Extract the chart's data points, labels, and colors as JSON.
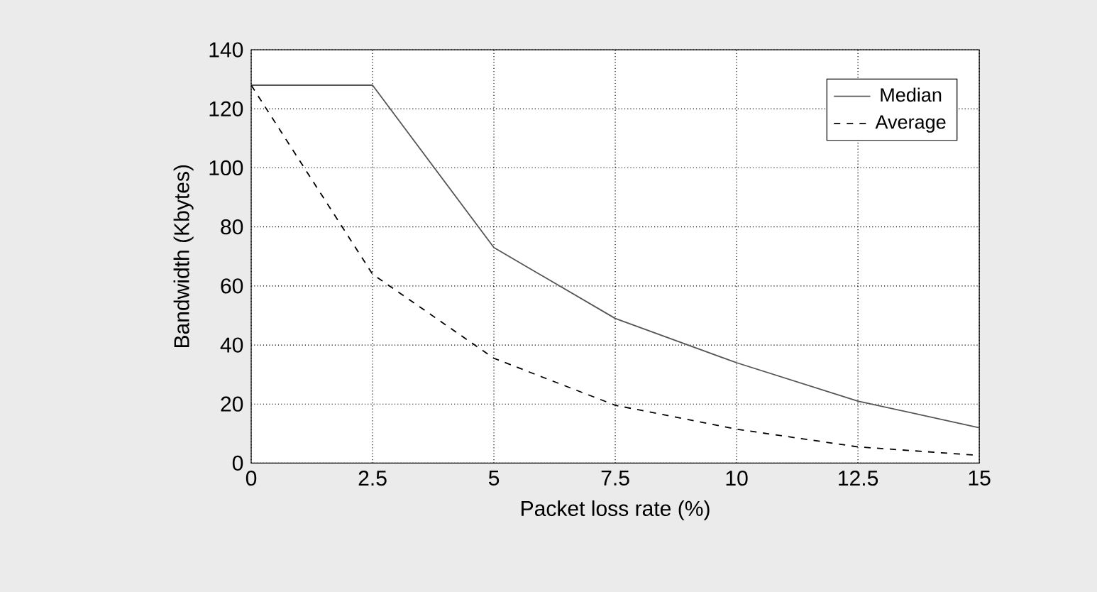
{
  "chart_data": {
    "type": "line",
    "xlabel": "Packet loss rate (%)",
    "ylabel": "Bandwidth (Kbytes)",
    "x": [
      0,
      2.5,
      5,
      7.5,
      10,
      12.5,
      15
    ],
    "series": [
      {
        "name": "Median",
        "color": "#555555",
        "line_style": "solid",
        "values": [
          128,
          128,
          73,
          49,
          34,
          21,
          12
        ]
      },
      {
        "name": "Average",
        "color": "#000000",
        "line_style": "dashed",
        "values": [
          128,
          64,
          35.5,
          19.6,
          11.5,
          5.5,
          2.6
        ]
      }
    ],
    "xlim": [
      0,
      15
    ],
    "ylim": [
      0,
      140
    ],
    "xticks": [
      0,
      2.5,
      5,
      7.5,
      10,
      12.5,
      15
    ],
    "yticks": [
      0,
      20,
      40,
      60,
      80,
      100,
      120,
      140
    ],
    "grid": true,
    "legend": "top right",
    "marker": "none"
  }
}
